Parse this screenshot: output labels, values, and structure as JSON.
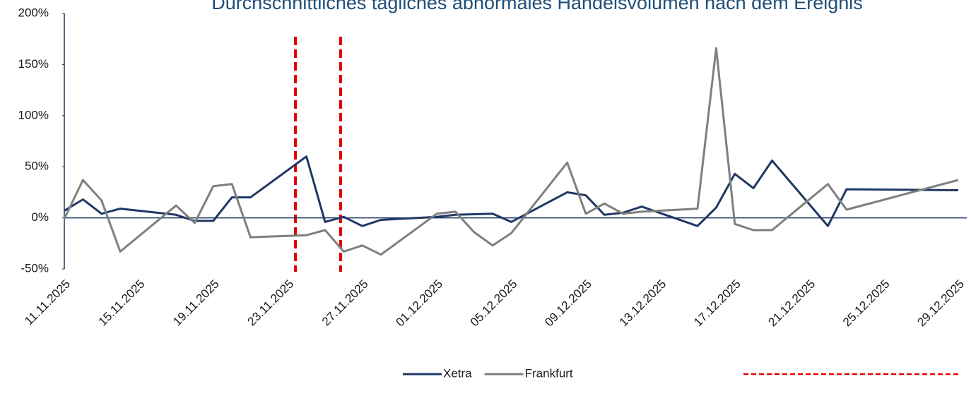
{
  "chart_data": {
    "type": "line",
    "title": "Durchschnittliches tägliches abnormales Handelsvolumen nach dem Ereignis",
    "x": [
      "11.11.2025",
      "12.11.2025",
      "13.11.2025",
      "14.11.2025",
      "17.11.2025",
      "18.11.2025",
      "19.11.2025",
      "20.11.2025",
      "21.11.2025",
      "24.11.2025",
      "25.11.2025",
      "26.11.2025",
      "27.11.2025",
      "28.11.2025",
      "01.12.2025",
      "02.12.2025",
      "03.12.2025",
      "04.12.2025",
      "05.12.2025",
      "08.12.2025",
      "09.12.2025",
      "10.12.2025",
      "11.12.2025",
      "12.12.2025",
      "15.12.2025",
      "16.12.2025",
      "17.12.2025",
      "18.12.2025",
      "19.12.2025",
      "22.12.2025",
      "23.12.2025",
      "29.12.2025"
    ],
    "series": [
      {
        "name": "Xetra",
        "color": "#1f3864",
        "values": [
          7,
          18,
          4,
          9,
          3,
          -3,
          -3,
          20,
          20,
          60,
          -4,
          1,
          -8,
          -2,
          1,
          3,
          3.5,
          4,
          -4,
          25,
          22,
          3,
          5,
          11,
          -8,
          10,
          43,
          29,
          56,
          -8,
          28,
          27
        ]
      },
      {
        "name": "Frankfurt",
        "color": "#7f7f7f",
        "values": [
          -1,
          37,
          17,
          -33,
          12,
          -5,
          31,
          33,
          -19,
          -17,
          -12,
          -33,
          -27,
          -36,
          4,
          6,
          -14,
          -27,
          -15,
          54,
          4,
          14,
          4,
          6,
          9,
          166,
          -6,
          -12,
          -12,
          33,
          8,
          37
        ]
      }
    ],
    "xlim": [
      "11.11.2025",
      "29.12.2025"
    ],
    "xticks": [
      "11.11.2025",
      "15.11.2025",
      "19.11.2025",
      "23.11.2025",
      "27.11.2025",
      "01.12.2025",
      "05.12.2025",
      "09.12.2025",
      "13.12.2025",
      "17.12.2025",
      "21.12.2025",
      "25.12.2025",
      "29.12.2025"
    ],
    "ylim": [
      -50,
      200
    ],
    "yticks": [
      {
        "value": -50,
        "label": "-50%"
      },
      {
        "value": 0,
        "label": "0%"
      },
      {
        "value": 50,
        "label": "50%"
      },
      {
        "value": 100,
        "label": "100%"
      },
      {
        "value": 150,
        "label": "150%"
      },
      {
        "value": 200,
        "label": "200%"
      }
    ],
    "legend": "bottom"
  }
}
